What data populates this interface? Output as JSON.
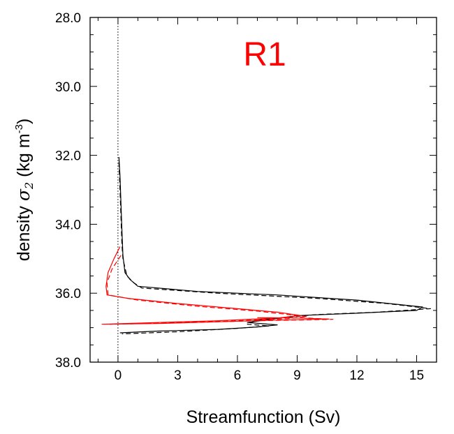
{
  "chart_data": {
    "type": "line",
    "panel_label": "R1",
    "panel_label_color": "#ff0000",
    "xlabel": "Streamfunction (Sv)",
    "ylabel": {
      "prefix": "density ",
      "symbol": "σ",
      "subscript": "2",
      "unit_open": " (kg m",
      "unit_sup": "-3",
      "unit_close": ")"
    },
    "xlim": [
      -1.4,
      16.0
    ],
    "ylim": [
      28.0,
      38.0
    ],
    "y_inverted": true,
    "x_ticks": [
      0,
      3,
      6,
      9,
      12,
      15
    ],
    "x_tick_labels": [
      "0",
      "3",
      "6",
      "9",
      "12",
      "15"
    ],
    "y_ticks": [
      28.0,
      30.0,
      32.0,
      34.0,
      36.0,
      38.0
    ],
    "y_tick_labels": [
      "28.0",
      "30.0",
      "32.0",
      "34.0",
      "36.0",
      "38.0"
    ],
    "zero_line": true,
    "grid": false,
    "series": [
      {
        "color": "#000000",
        "dash": "solid",
        "points": [
          [
            0.05,
            32.05
          ],
          [
            0.1,
            32.6
          ],
          [
            0.15,
            33.4
          ],
          [
            0.2,
            34.2
          ],
          [
            0.25,
            34.9
          ],
          [
            0.35,
            35.4
          ],
          [
            0.6,
            35.6
          ],
          [
            1.0,
            35.8
          ],
          [
            4.0,
            35.95
          ],
          [
            8.0,
            36.05
          ],
          [
            12.0,
            36.2
          ],
          [
            15.3,
            36.4
          ],
          [
            15.0,
            36.5
          ],
          [
            12.0,
            36.58
          ],
          [
            9.0,
            36.65
          ],
          [
            6.5,
            36.85
          ],
          [
            8.0,
            36.92
          ],
          [
            7.0,
            36.98
          ],
          [
            5.0,
            37.05
          ],
          [
            2.0,
            37.1
          ],
          [
            0.1,
            37.15
          ]
        ]
      },
      {
        "color": "#000000",
        "dash": "dashed",
        "points": [
          [
            0.05,
            32.2
          ],
          [
            0.1,
            33.0
          ],
          [
            0.15,
            33.8
          ],
          [
            0.2,
            34.6
          ],
          [
            0.25,
            35.0
          ],
          [
            0.45,
            35.5
          ],
          [
            0.8,
            35.7
          ],
          [
            1.2,
            35.85
          ],
          [
            5.0,
            36.0
          ],
          [
            10.0,
            36.15
          ],
          [
            13.5,
            36.3
          ],
          [
            15.7,
            36.45
          ],
          [
            13.0,
            36.55
          ],
          [
            10.0,
            36.62
          ],
          [
            7.0,
            36.78
          ],
          [
            6.5,
            36.9
          ],
          [
            7.6,
            36.95
          ],
          [
            6.0,
            37.02
          ],
          [
            3.0,
            37.12
          ],
          [
            0.2,
            37.18
          ]
        ]
      },
      {
        "color": "#ff0000",
        "dash": "solid",
        "points": [
          [
            0.1,
            34.65
          ],
          [
            -0.2,
            35.0
          ],
          [
            -0.5,
            35.4
          ],
          [
            -0.6,
            35.8
          ],
          [
            -0.55,
            36.05
          ],
          [
            0.5,
            36.15
          ],
          [
            3.0,
            36.3
          ],
          [
            6.0,
            36.45
          ],
          [
            8.0,
            36.55
          ],
          [
            9.2,
            36.65
          ],
          [
            8.0,
            36.72
          ],
          [
            5.0,
            36.8
          ],
          [
            2.0,
            36.85
          ],
          [
            -0.8,
            36.9
          ],
          [
            2.0,
            36.88
          ],
          [
            5.0,
            36.83
          ],
          [
            8.0,
            36.78
          ],
          [
            10.6,
            36.75
          ],
          [
            9.0,
            36.72
          ],
          [
            7.0,
            36.71
          ]
        ]
      },
      {
        "color": "#ff0000",
        "dash": "dashed",
        "points": [
          [
            0.15,
            34.9
          ],
          [
            -0.3,
            35.3
          ],
          [
            -0.55,
            35.7
          ],
          [
            -0.5,
            36.05
          ],
          [
            1.0,
            36.2
          ],
          [
            4.0,
            36.38
          ],
          [
            7.0,
            36.52
          ],
          [
            9.5,
            36.68
          ],
          [
            8.5,
            36.74
          ],
          [
            5.0,
            36.82
          ],
          [
            1.5,
            36.87
          ],
          [
            -0.4,
            36.9
          ],
          [
            3.0,
            36.86
          ],
          [
            7.0,
            36.8
          ],
          [
            10.8,
            36.76
          ],
          [
            9.5,
            36.72
          ]
        ]
      }
    ]
  }
}
